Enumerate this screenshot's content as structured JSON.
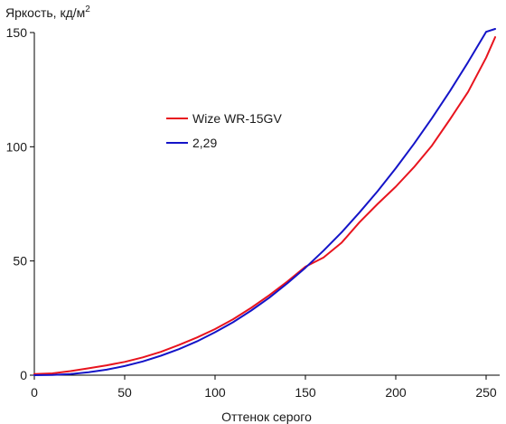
{
  "chart_data": {
    "type": "line",
    "ylabel": "Яркость, кд/м",
    "ylabel_sup": "2",
    "xlabel": "Оттенок серого",
    "xlim": [
      0,
      255
    ],
    "ylim": [
      0,
      150
    ],
    "x_ticks": [
      0,
      50,
      100,
      150,
      200,
      250
    ],
    "y_ticks": [
      0,
      50,
      100,
      150
    ],
    "grid": false,
    "legend_position": "upper-left-center",
    "series": [
      {
        "name": "Wize WR-15GV",
        "color": "#e8141e",
        "x": [
          0,
          10,
          20,
          30,
          40,
          50,
          60,
          70,
          80,
          90,
          100,
          110,
          120,
          130,
          140,
          150,
          160,
          170,
          180,
          190,
          200,
          210,
          220,
          230,
          240,
          250,
          255
        ],
        "y": [
          0.5,
          0.8,
          1.8,
          3.0,
          4.3,
          5.8,
          7.8,
          10.2,
          13.2,
          16.5,
          20.2,
          24.5,
          29.5,
          35.0,
          41.0,
          47.5,
          51.5,
          58.0,
          67.0,
          75.0,
          82.5,
          91.0,
          100.5,
          112.0,
          124.0,
          139.0,
          148.0
        ]
      },
      {
        "name": "2,29",
        "color": "#1414c8",
        "x": [
          0,
          10,
          20,
          30,
          40,
          50,
          60,
          70,
          80,
          90,
          100,
          110,
          120,
          130,
          140,
          150,
          160,
          170,
          180,
          190,
          200,
          210,
          220,
          230,
          240,
          250,
          255
        ],
        "y": [
          0,
          0.1,
          0.5,
          1.3,
          2.4,
          4.0,
          6.0,
          8.5,
          11.4,
          14.8,
          18.8,
          23.2,
          28.3,
          33.9,
          40.2,
          47.0,
          54.5,
          62.5,
          71.3,
          80.6,
          90.6,
          101.2,
          112.5,
          124.4,
          137.0,
          150.3,
          157.0
        ]
      }
    ]
  }
}
